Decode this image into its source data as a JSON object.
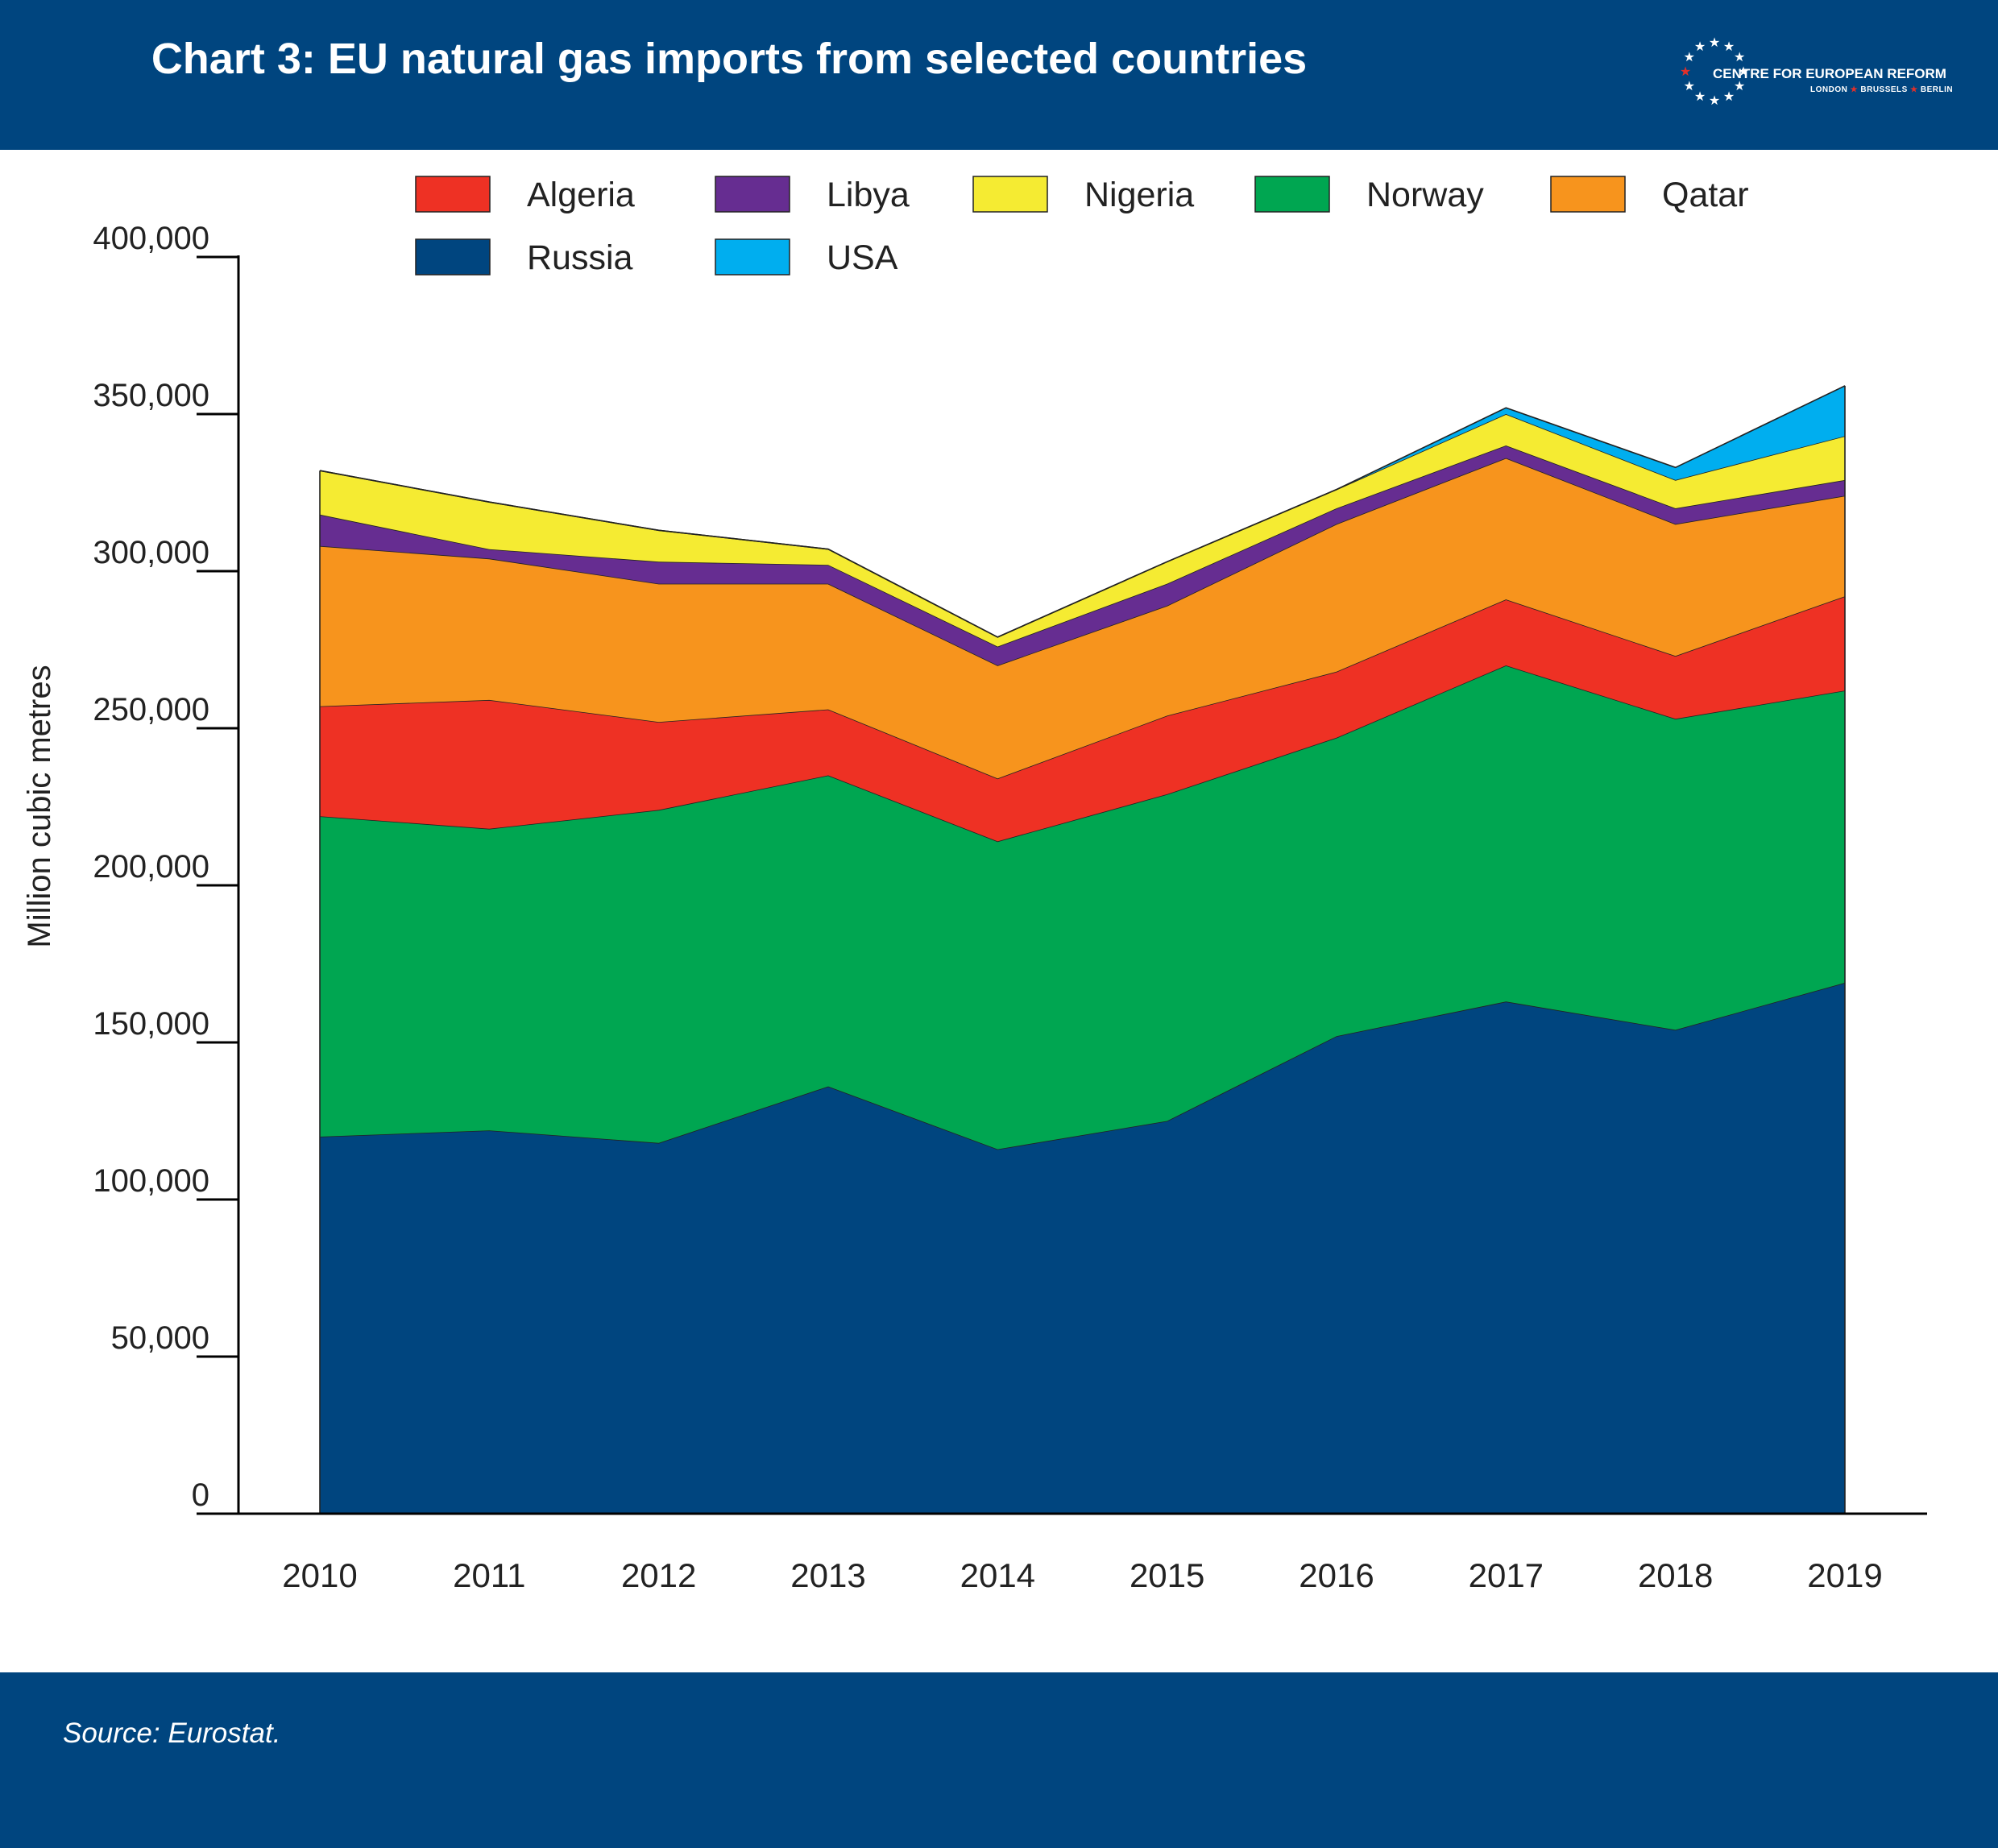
{
  "header": {
    "title": "Chart 3: EU natural gas imports from selected countries",
    "logo_text": "CENTRE FOR EUROPEAN REFORM",
    "logo_cities": [
      "LONDON",
      "BRUSSELS",
      "BERLIN"
    ]
  },
  "footer": {
    "source": "Source: Eurostat."
  },
  "colors": {
    "brand_blue": "#00457f",
    "logo_star_accent": "#e0302a"
  },
  "chart_data": {
    "type": "area",
    "stacked": true,
    "title": "Chart 3: EU natural gas imports from selected countries",
    "ylabel": "Million cubic metres",
    "xlabel": "",
    "x": [
      "2010",
      "2011",
      "2012",
      "2013",
      "2014",
      "2015",
      "2016",
      "2017",
      "2018",
      "2019"
    ],
    "ylim": [
      0,
      400000
    ],
    "yticks": [
      0,
      50000,
      100000,
      150000,
      200000,
      250000,
      300000,
      350000,
      400000
    ],
    "ytick_labels": [
      "0",
      "50,000",
      "100,000",
      "150,000",
      "200,000",
      "250,000",
      "300,000",
      "350,000",
      "400,000"
    ],
    "grid": false,
    "legend_position": "top",
    "legend_order": [
      "Algeria",
      "Libya",
      "Nigeria",
      "Norway",
      "Qatar",
      "Russia",
      "USA"
    ],
    "series": [
      {
        "name": "Russia",
        "color": "#00457f",
        "values": [
          120000,
          122000,
          118000,
          136000,
          116000,
          125000,
          152000,
          163000,
          154000,
          169000
        ]
      },
      {
        "name": "Norway",
        "color": "#00a651",
        "values": [
          102000,
          96000,
          106000,
          99000,
          98000,
          104000,
          95000,
          107000,
          99000,
          93000
        ]
      },
      {
        "name": "Algeria",
        "color": "#ee3124",
        "values": [
          35000,
          41000,
          28000,
          21000,
          20000,
          25000,
          21000,
          21000,
          20000,
          30000
        ]
      },
      {
        "name": "Qatar",
        "color": "#f7941d",
        "values": [
          51000,
          45000,
          44000,
          40000,
          36000,
          35000,
          47000,
          45000,
          42000,
          32000
        ]
      },
      {
        "name": "Libya",
        "color": "#662d91",
        "values": [
          10000,
          3000,
          7000,
          6000,
          6000,
          7000,
          5000,
          4000,
          5000,
          5000
        ]
      },
      {
        "name": "Nigeria",
        "color": "#f5eb32",
        "values": [
          14000,
          15000,
          10000,
          5000,
          3000,
          7000,
          6000,
          10000,
          9000,
          14000
        ]
      },
      {
        "name": "USA",
        "color": "#00aeef",
        "values": [
          0,
          0,
          0,
          0,
          0,
          0,
          0,
          2000,
          4000,
          16000
        ]
      }
    ]
  }
}
